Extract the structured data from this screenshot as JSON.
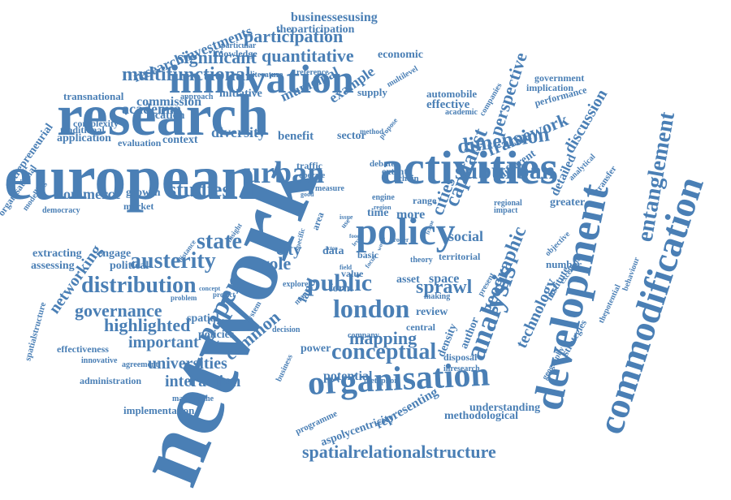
{
  "style": {
    "text_color": "#4a7fb5",
    "background": "#ffffff"
  },
  "words": [
    "network",
    "research",
    "european",
    "innovation",
    "activities",
    "development",
    "commodification",
    "policy",
    "organisation",
    "analysis",
    "urban",
    "suburban",
    "london",
    "public",
    "austerity",
    "distribution",
    "paper",
    "state",
    "studies",
    "dimension",
    "framework",
    "capitalist",
    "perspective",
    "entanglement",
    "conceptual",
    "spatialrelationalstructure",
    "participation",
    "quantitative",
    "multifunctional",
    "significant",
    "governance",
    "highlighted",
    "mapping",
    "sprawl",
    "geographic",
    "cities",
    "technology",
    "universities",
    "interaction",
    "important",
    "common",
    "role",
    "city",
    "social",
    "representing",
    "diversity",
    "municipal",
    "example",
    "commission",
    "academia",
    "application",
    "location",
    "complexity",
    "traditional",
    "transnational",
    "researchinvestments",
    "businessesusing",
    "theparticipation",
    "knowledge",
    "particular",
    "economic",
    "automobile",
    "effective",
    "supply",
    "initiative",
    "approach",
    "literature",
    "reference",
    "multilevel",
    "companies",
    "academic",
    "government",
    "implication",
    "performance",
    "discussion",
    "different",
    "detailed",
    "analytical",
    "transfer",
    "greater",
    "regional",
    "impact",
    "range",
    "engine",
    "region",
    "debate",
    "extent",
    "chain",
    "traffic",
    "operate",
    "measure",
    "sector",
    "benefit",
    "context",
    "evaluation",
    "method",
    "propose",
    "entrepreneurial",
    "organisational",
    "modelling",
    "democracy",
    "commerce",
    "growth",
    "market",
    "extracting",
    "engage",
    "networking",
    "assessing",
    "political",
    "distance",
    "spatialstructure",
    "spatial",
    "policies",
    "effectiveness",
    "innovative",
    "agreement",
    "administration",
    "mappingthe",
    "implementation",
    "potential",
    "power",
    "company",
    "decision",
    "business",
    "metaphor",
    "disposal",
    "inresearch",
    "understanding",
    "methodological",
    "aspolycentricity",
    "programme",
    "density",
    "author",
    "review",
    "central",
    "asset",
    "space",
    "form",
    "many",
    "land",
    "explore",
    "data",
    "basic",
    "territorial",
    "theory",
    "focus",
    "number",
    "institute",
    "excellence",
    "strategies",
    "thepotential",
    "behaviour",
    "objective",
    "present",
    "making",
    "more",
    "time",
    "proper",
    "world",
    "frame",
    "area",
    "issue",
    "use",
    "food",
    "level",
    "actor",
    "specific",
    "insight",
    "concept",
    "problem",
    "project",
    "system",
    "geography",
    "good",
    "field",
    "value"
  ]
}
